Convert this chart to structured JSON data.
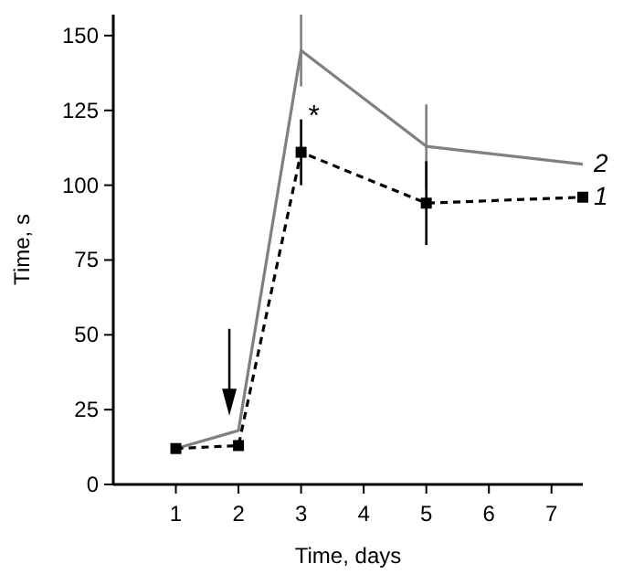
{
  "chart_data": {
    "type": "line",
    "xlabel": "Time, days",
    "ylabel": "Time, s",
    "xlim": [
      0,
      7.5
    ],
    "xticks": [
      1,
      2,
      3,
      4,
      5,
      6,
      7
    ],
    "ylim": [
      0,
      157
    ],
    "yticks": [
      0,
      25,
      50,
      75,
      100,
      125,
      150
    ],
    "grid": false,
    "series": [
      {
        "name": "2",
        "color": "#808080",
        "line_style": "solid",
        "marker": "none",
        "x": [
          1,
          2,
          3,
          5,
          7.5
        ],
        "values": [
          12,
          18,
          145,
          113,
          107
        ],
        "errors": [
          null,
          null,
          12,
          14,
          null
        ]
      },
      {
        "name": "1",
        "color": "#000000",
        "line_style": "dashed",
        "marker": "square",
        "x": [
          1,
          2,
          3,
          5,
          7.5
        ],
        "values": [
          12,
          13,
          111,
          94,
          96
        ],
        "errors": [
          null,
          null,
          11,
          14,
          null
        ]
      }
    ],
    "annotations": [
      {
        "text": "*",
        "x": 3,
        "y": 125
      }
    ]
  }
}
